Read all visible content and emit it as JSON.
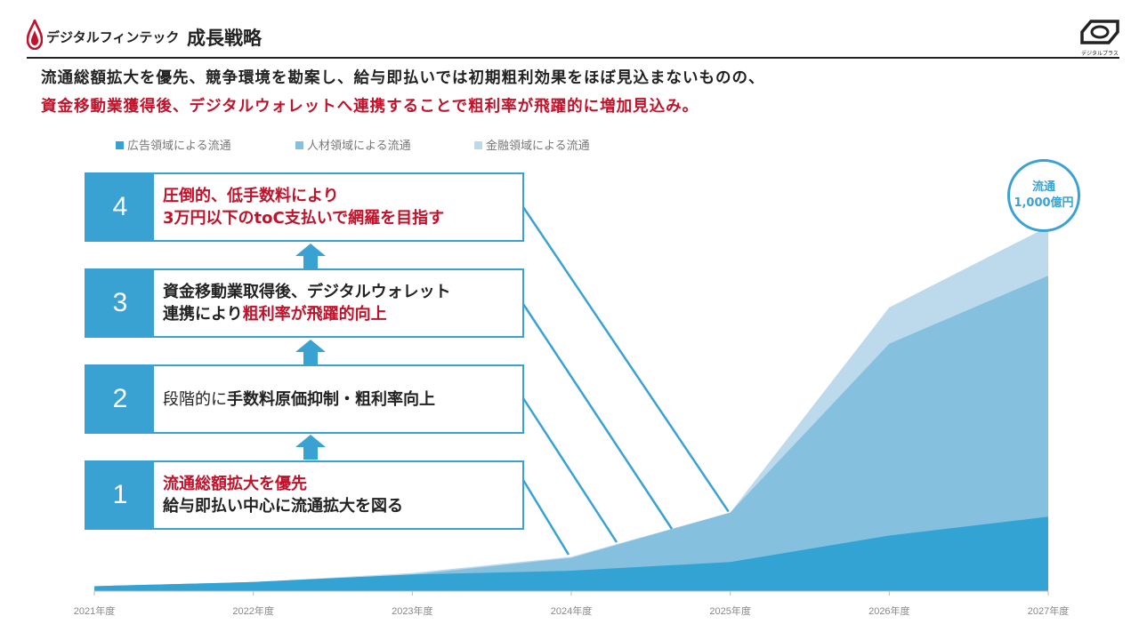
{
  "header": {
    "logo_text": "デジタルフィンテック",
    "page_title": "成長戦略",
    "brand_text": "デジタルプラス"
  },
  "lead": {
    "line1": "流通総額拡大を優先、競争環境を勘案し、給与即払いでは初期粗利効果をほぼ見込まないものの、",
    "line2": "資金移動業獲得後、デジタルウォレットへ連携することで粗利率が飛躍的に増加見込み。"
  },
  "colors": {
    "accent": "#3aa2d3",
    "red": "#c0122a",
    "series_ad": "#33a3d4",
    "series_hr": "#86c0df",
    "series_fin": "#bcdaec"
  },
  "steps": [
    {
      "num": "1",
      "line1": "流通総額拡大を優先",
      "line2": "給与即払い中心に流通拡大を図る"
    },
    {
      "num": "2",
      "line1_normal": "段階的に",
      "line1_bold": "手数料原価抑制・粗利率向上"
    },
    {
      "num": "3",
      "line1": "資金移動業取得後、デジタルウォレット",
      "line2_prefix": "連携により",
      "line2_red": "粗利率が飛躍的向上"
    },
    {
      "num": "4",
      "line1": "圧倒的、低手数料により",
      "line2": "3万円以下のtoC支払いで網羅を目指す"
    }
  ],
  "callout": {
    "line1": "流通",
    "line2": "1,000億円"
  },
  "chart_data": {
    "type": "area",
    "stacked": true,
    "categories": [
      "2021年度",
      "2022年度",
      "2023年度",
      "2024年度",
      "2025年度",
      "2026年度",
      "2027年度"
    ],
    "ylim": [
      0,
      1000
    ],
    "series": [
      {
        "name": "広告領域による流通",
        "values": [
          13,
          24,
          44,
          54,
          77,
          147,
          197
        ]
      },
      {
        "name": "人材領域による流通",
        "values": [
          0,
          0,
          0,
          34,
          131,
          508,
          638
        ]
      },
      {
        "name": "金融領域による流通",
        "values": [
          0,
          0,
          4,
          3,
          0,
          96,
          130
        ]
      }
    ],
    "legend": "top"
  }
}
